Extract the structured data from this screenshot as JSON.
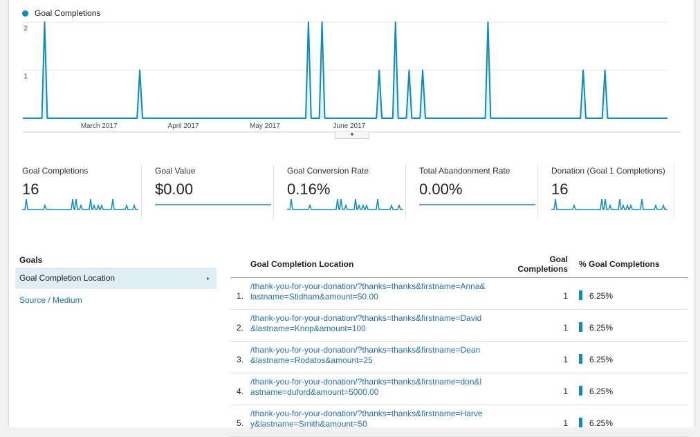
{
  "chart_data": {
    "type": "line",
    "series": [
      {
        "name": "Goal Completions",
        "values": [
          0,
          0,
          0,
          0,
          0,
          0,
          0,
          0,
          2,
          0,
          0,
          0,
          0,
          0,
          0,
          0,
          0,
          0,
          0,
          0,
          0,
          0,
          0,
          0,
          0,
          0,
          0,
          0,
          0,
          0,
          0,
          0,
          0,
          0,
          0,
          0,
          0,
          0,
          0,
          0,
          0,
          0,
          0,
          1,
          0,
          0,
          0,
          0,
          0,
          0,
          0,
          0,
          0,
          0,
          0,
          0,
          0,
          0,
          0,
          0,
          0,
          0,
          0,
          0,
          0,
          0,
          0,
          0,
          0,
          0,
          0,
          0,
          0,
          0,
          0,
          0,
          0,
          0,
          0,
          0,
          0,
          0,
          0,
          0,
          0,
          0,
          0,
          0,
          0,
          0,
          0,
          0,
          0,
          0,
          0,
          0,
          0,
          0,
          0,
          0,
          0,
          0,
          0,
          0,
          0,
          2,
          0,
          0,
          0,
          0,
          2,
          0,
          0,
          0,
          0,
          0,
          0,
          0,
          0,
          0,
          0,
          0,
          0,
          0,
          0,
          0,
          0,
          0,
          0,
          0,
          0,
          1,
          0,
          0,
          0,
          0,
          0,
          2,
          0,
          0,
          0,
          0,
          1,
          0,
          0,
          0,
          0,
          1,
          0,
          0,
          0,
          0,
          0,
          0,
          0,
          0,
          0,
          0,
          0,
          0,
          0,
          0,
          0,
          0,
          0,
          0,
          0,
          0,
          0,
          0,
          0,
          2,
          0,
          0,
          0,
          0,
          0,
          0,
          0,
          0,
          0,
          0,
          0,
          0,
          0,
          0,
          0,
          0,
          0,
          0,
          0,
          0,
          0,
          0,
          0,
          0,
          0,
          0,
          0,
          0,
          0,
          0,
          0,
          0,
          0,
          0,
          1,
          0,
          0,
          0,
          0,
          0,
          0,
          0,
          1,
          0,
          0,
          0,
          0,
          0,
          0,
          0,
          0,
          0,
          0,
          0,
          0,
          0,
          0,
          0,
          0,
          0,
          0,
          0,
          0,
          0,
          0,
          0
        ]
      }
    ],
    "ylim": [
      0,
      2
    ],
    "yticks": [
      "1",
      "2"
    ],
    "xticks": [
      {
        "label": "March 2017",
        "at": 28
      },
      {
        "label": "April 2017",
        "at": 59
      },
      {
        "label": "May 2017",
        "at": 89
      },
      {
        "label": "June 2017",
        "at": 120
      }
    ],
    "grid": true
  },
  "legend": {
    "label": "Goal Completions",
    "color": "#058dc7"
  },
  "collapse_handle": {
    "icon": "chevron-down-icon",
    "glyph": "▼"
  },
  "scorecards": [
    {
      "label": "Goal Completions",
      "value": "16",
      "spark": "spikes"
    },
    {
      "label": "Goal Value",
      "value": "$0.00",
      "spark": "flat"
    },
    {
      "label": "Goal Conversion Rate",
      "value": "0.16%",
      "spark": "spikes"
    },
    {
      "label": "Total Abandonment Rate",
      "value": "0.00%",
      "spark": "flat"
    },
    {
      "label": "Donation (Goal 1 Completions)",
      "value": "16",
      "spark": "spikes"
    }
  ],
  "goals_nav": {
    "header": "Goals",
    "active_item": "Goal Completion Location",
    "active_arrow": "▸",
    "link_item": "Source / Medium"
  },
  "table": {
    "headers": {
      "location": "Goal Completion Location",
      "completions": "Goal Completions",
      "pct": "% Goal Completions"
    },
    "rows": [
      {
        "num": "1.",
        "location": "/thank-you-for-your-donation/?thanks=thanks&firstname=Anna&lastname=Stidham&amount=50.00",
        "completions": "1",
        "pct": "6.25%"
      },
      {
        "num": "2.",
        "location": "/thank-you-for-your-donation/?thanks=thanks&firstname=David&lastname=Knop&amount=100",
        "completions": "1",
        "pct": "6.25%"
      },
      {
        "num": "3.",
        "location": "/thank-you-for-your-donation/?thanks=thanks&firstname=Dean&lastname=Rodatos&amount=25",
        "completions": "1",
        "pct": "6.25%"
      },
      {
        "num": "4.",
        "location": "/thank-you-for-your-donation/?thanks=thanks&firstname=don&lastname=duford&amount=5000.00",
        "completions": "1",
        "pct": "6.25%"
      },
      {
        "num": "5.",
        "location": "/thank-you-for-your-donation/?thanks=thanks&firstname=Harvey&lastname=Smith&amount=50",
        "completions": "1",
        "pct": "6.25%"
      }
    ]
  }
}
